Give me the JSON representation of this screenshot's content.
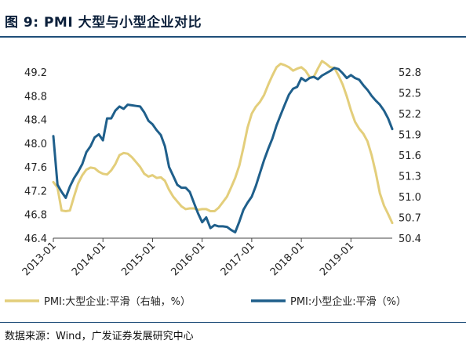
{
  "figure": {
    "title": "图 9: PMI 大型与小型企业对比",
    "source": "数据来源：Wind，广发证券发展研究中心"
  },
  "colors": {
    "large": "#E3CE7B",
    "small": "#1F5F8B"
  },
  "chart_data": {
    "type": "line",
    "x_tick_labels": [
      "2013-01",
      "2014-01",
      "2015-01",
      "2016-01",
      "2017-01",
      "2018-01",
      "2019-01"
    ],
    "x_range": [
      "2013-01",
      "2019-11"
    ],
    "left_axis": {
      "ylim": [
        46.4,
        49.2
      ],
      "ticks": [
        "46.4",
        "46.8",
        "47.2",
        "47.6",
        "48.0",
        "48.4",
        "48.8",
        "49.2"
      ]
    },
    "right_axis": {
      "ylim": [
        50.4,
        52.8
      ],
      "ticks": [
        "50.4",
        "50.7",
        "51.0",
        "51.3",
        "51.6",
        "51.9",
        "52.2",
        "52.5",
        "52.8"
      ]
    },
    "grid": false,
    "legend_position": "bottom",
    "series": [
      {
        "name": "PMI:大型企业:平滑（右轴，%）",
        "axis": "right",
        "x": [
          "2013-01",
          "2013-02",
          "2013-03",
          "2013-04",
          "2013-05",
          "2013-06",
          "2013-07",
          "2013-08",
          "2013-09",
          "2013-10",
          "2013-11",
          "2013-12",
          "2014-01",
          "2014-02",
          "2014-03",
          "2014-04",
          "2014-05",
          "2014-06",
          "2014-07",
          "2014-08",
          "2014-09",
          "2014-10",
          "2014-11",
          "2014-12",
          "2015-01",
          "2015-02",
          "2015-03",
          "2015-04",
          "2015-05",
          "2015-06",
          "2015-07",
          "2015-08",
          "2015-09",
          "2015-10",
          "2015-11",
          "2015-12",
          "2016-01",
          "2016-02",
          "2016-03",
          "2016-04",
          "2016-05",
          "2016-06",
          "2016-07",
          "2016-08",
          "2016-09",
          "2016-10",
          "2016-11",
          "2016-12",
          "2017-01",
          "2017-02",
          "2017-03",
          "2017-04",
          "2017-05",
          "2017-06",
          "2017-07",
          "2017-08",
          "2017-09",
          "2017-10",
          "2017-11",
          "2017-12",
          "2018-01",
          "2018-02",
          "2018-03",
          "2018-04",
          "2018-05",
          "2018-06",
          "2018-07",
          "2018-08",
          "2018-09",
          "2018-10",
          "2018-11",
          "2018-12",
          "2019-01",
          "2019-02",
          "2019-03",
          "2019-04",
          "2019-05",
          "2019-06",
          "2019-07",
          "2019-08",
          "2019-09",
          "2019-10",
          "2019-11"
        ],
        "values": [
          51.21,
          51.13,
          50.8,
          50.79,
          50.8,
          51.0,
          51.19,
          51.31,
          51.39,
          51.42,
          51.41,
          51.36,
          51.33,
          51.32,
          51.38,
          51.47,
          51.6,
          51.63,
          51.62,
          51.57,
          51.5,
          51.43,
          51.33,
          51.29,
          51.31,
          51.27,
          51.28,
          51.23,
          51.1,
          51.0,
          50.93,
          50.86,
          50.82,
          50.83,
          50.83,
          50.81,
          50.82,
          50.82,
          50.79,
          50.79,
          50.84,
          50.92,
          51.0,
          51.13,
          51.27,
          51.45,
          51.71,
          52.0,
          52.2,
          52.3,
          52.37,
          52.47,
          52.62,
          52.75,
          52.87,
          52.92,
          52.9,
          52.87,
          52.82,
          52.85,
          52.87,
          52.82,
          52.73,
          52.73,
          52.85,
          52.96,
          52.92,
          52.87,
          52.86,
          52.75,
          52.62,
          52.45,
          52.25,
          52.08,
          51.98,
          51.91,
          51.8,
          51.6,
          51.35,
          51.05,
          50.87,
          50.75,
          50.62
        ]
      },
      {
        "name": "PMI:小型企业:平滑（%）",
        "axis": "left",
        "x": [
          "2013-01",
          "2013-02",
          "2013-03",
          "2013-04",
          "2013-05",
          "2013-06",
          "2013-07",
          "2013-08",
          "2013-09",
          "2013-10",
          "2013-11",
          "2013-12",
          "2014-01",
          "2014-02",
          "2014-03",
          "2014-04",
          "2014-05",
          "2014-06",
          "2014-07",
          "2014-08",
          "2014-09",
          "2014-10",
          "2014-11",
          "2014-12",
          "2015-01",
          "2015-02",
          "2015-03",
          "2015-04",
          "2015-05",
          "2015-06",
          "2015-07",
          "2015-08",
          "2015-09",
          "2015-10",
          "2015-11",
          "2015-12",
          "2016-01",
          "2016-02",
          "2016-03",
          "2016-04",
          "2016-05",
          "2016-06",
          "2016-07",
          "2016-08",
          "2016-09",
          "2016-10",
          "2016-11",
          "2016-12",
          "2017-01",
          "2017-02",
          "2017-03",
          "2017-04",
          "2017-05",
          "2017-06",
          "2017-07",
          "2017-08",
          "2017-09",
          "2017-10",
          "2017-11",
          "2017-12",
          "2018-01",
          "2018-02",
          "2018-03",
          "2018-04",
          "2018-05",
          "2018-06",
          "2018-07",
          "2018-08",
          "2018-09",
          "2018-10",
          "2018-11",
          "2018-12",
          "2019-01",
          "2019-02",
          "2019-03",
          "2019-04",
          "2019-05",
          "2019-06",
          "2019-07",
          "2019-08",
          "2019-09",
          "2019-10",
          "2019-11"
        ],
        "values": [
          48.12,
          47.3,
          47.18,
          47.08,
          47.27,
          47.41,
          47.52,
          47.65,
          47.85,
          47.95,
          48.1,
          48.15,
          48.05,
          48.42,
          48.42,
          48.55,
          48.62,
          48.58,
          48.65,
          48.64,
          48.63,
          48.62,
          48.52,
          48.38,
          48.32,
          48.22,
          48.14,
          47.95,
          47.6,
          47.45,
          47.3,
          47.25,
          47.25,
          47.18,
          47.0,
          46.82,
          46.67,
          46.75,
          46.57,
          46.62,
          46.6,
          46.6,
          46.59,
          46.54,
          46.5,
          46.68,
          46.88,
          47.0,
          47.1,
          47.28,
          47.5,
          47.72,
          47.91,
          48.08,
          48.3,
          48.48,
          48.65,
          48.82,
          48.92,
          48.95,
          49.1,
          49.05,
          49.1,
          49.12,
          49.08,
          49.14,
          49.18,
          49.22,
          49.27,
          49.25,
          49.18,
          49.1,
          49.15,
          49.1,
          49.07,
          48.98,
          48.9,
          48.8,
          48.72,
          48.65,
          48.55,
          48.42,
          48.24
        ]
      }
    ]
  }
}
